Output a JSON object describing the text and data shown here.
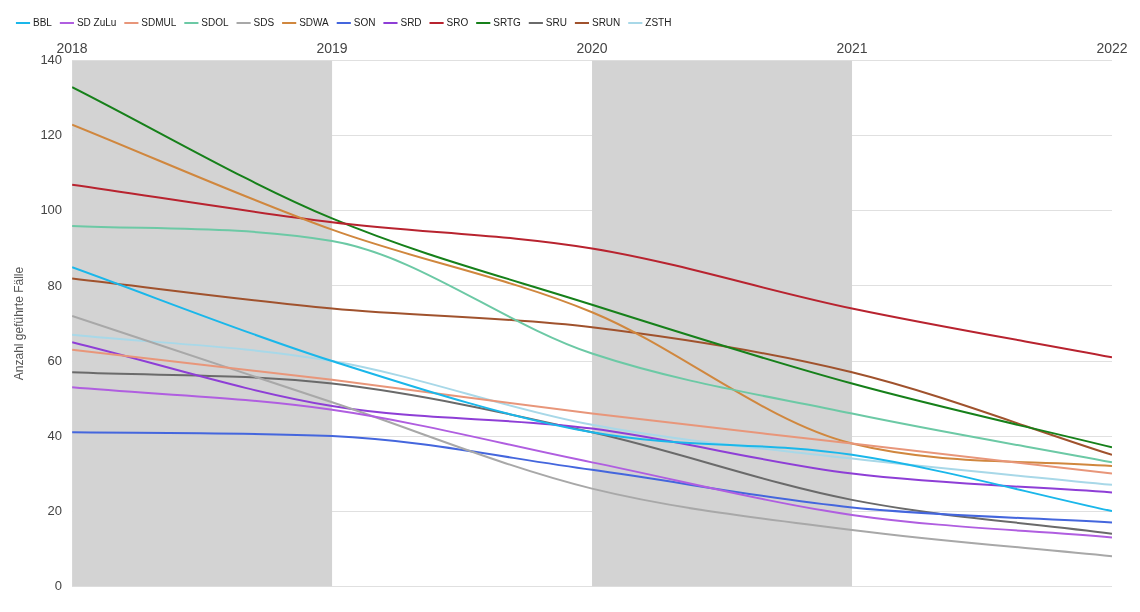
{
  "chart_data": {
    "type": "line",
    "ylabel": "Anzahl geführte Fälle",
    "x": [
      2018,
      2019,
      2020,
      2021,
      2022
    ],
    "xlim": [
      2018,
      2022
    ],
    "xticks": [
      2018,
      2019,
      2020,
      2021,
      2022
    ],
    "ylim": [
      0,
      140
    ],
    "yticks": [
      0,
      20,
      40,
      60,
      80,
      100,
      120,
      140
    ],
    "grid": "y",
    "legend": "top left",
    "marker": "none",
    "line_style": "solid",
    "bands": [
      {
        "axis": "x",
        "from": 2018,
        "to": 2019,
        "color": "#d3d3d3"
      },
      {
        "axis": "x",
        "from": 2020,
        "to": 2021,
        "color": "#d3d3d3"
      }
    ],
    "series": [
      {
        "name": "BBL",
        "color": "#1ab7ea",
        "values": [
          85,
          60,
          41,
          35,
          20
        ]
      },
      {
        "name": "SD ZuLu",
        "color": "#b05ee0",
        "values": [
          53,
          47,
          33,
          19,
          13
        ]
      },
      {
        "name": "SDMUL",
        "color": "#e8967a",
        "values": [
          63,
          55,
          46,
          38,
          30
        ]
      },
      {
        "name": "SDOL",
        "color": "#6cc9a5",
        "values": [
          96,
          92,
          62,
          46,
          33
        ]
      },
      {
        "name": "SDS",
        "color": "#a8a8a8",
        "values": [
          72,
          49,
          26,
          15,
          8
        ]
      },
      {
        "name": "SDWA",
        "color": "#d0873e",
        "values": [
          123,
          95,
          73,
          38,
          32
        ]
      },
      {
        "name": "SON",
        "color": "#4466dd",
        "values": [
          41,
          40,
          31,
          21,
          17
        ]
      },
      {
        "name": "SRD",
        "color": "#8e3ed6",
        "values": [
          65,
          48,
          42,
          30,
          25
        ]
      },
      {
        "name": "SRO",
        "color": "#b8232f",
        "values": [
          107,
          97,
          90,
          74,
          61
        ]
      },
      {
        "name": "SRTG",
        "color": "#16801a",
        "values": [
          133,
          98,
          75,
          54,
          37
        ]
      },
      {
        "name": "SRU",
        "color": "#6a6a6a",
        "values": [
          57,
          54,
          41,
          23,
          14
        ]
      },
      {
        "name": "SRUN",
        "color": "#a0522d",
        "values": [
          82,
          74,
          69,
          57,
          35
        ]
      },
      {
        "name": "ZSTH",
        "color": "#a8d8e8",
        "values": [
          67,
          60,
          43,
          34,
          27
        ]
      }
    ]
  }
}
